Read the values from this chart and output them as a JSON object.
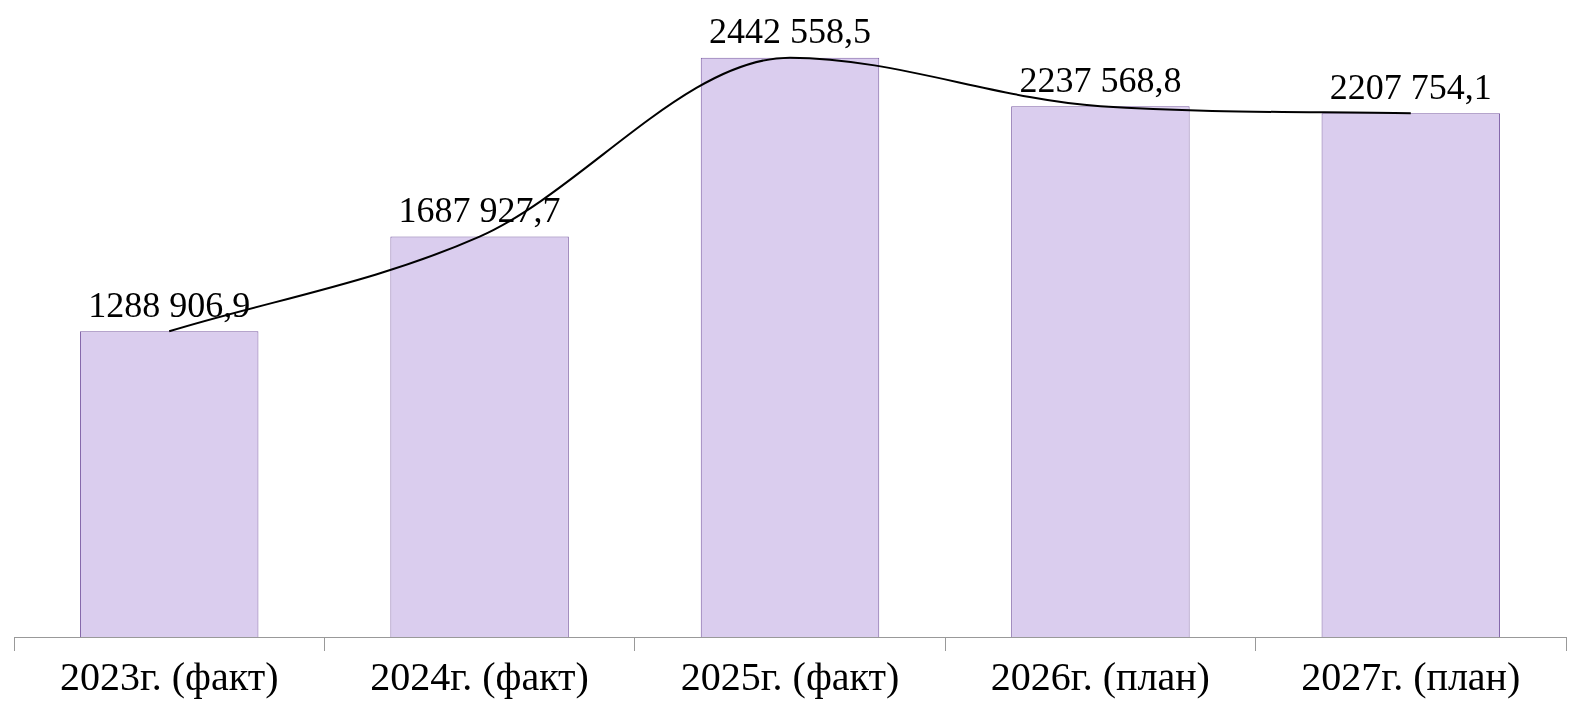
{
  "chart_data": {
    "type": "bar",
    "categories": [
      "2023г. (факт)",
      "2024г. (факт)",
      "2025г. (факт)",
      "2026г. (план)",
      "2027г. (план)"
    ],
    "series": [
      {
        "color": "#dacdee",
        "values": [
          1288906.9,
          1687927.7,
          2442558.5,
          2237568.8,
          2207754.1
        ],
        "value_labels": [
          "1288 906,9",
          "1687 927,7",
          "2442 558,5",
          "2237 568,8",
          "2207 754,1"
        ]
      },
      {
        "type": "line",
        "color": "#000000",
        "values": [
          1288906.9,
          1687927.7,
          2442558.5,
          2237568.8,
          2207754.1
        ]
      }
    ],
    "marker": "none",
    "grid": false,
    "legend": false
  }
}
